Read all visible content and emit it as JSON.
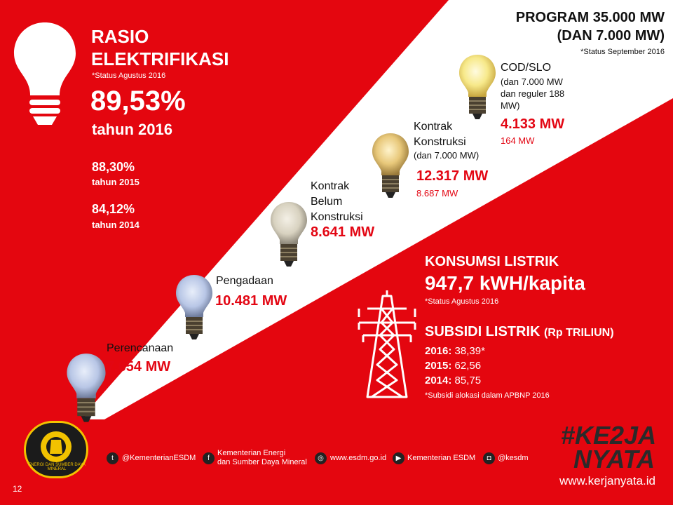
{
  "colors": {
    "brand_red": "#e4060f",
    "text_dark": "#111111",
    "value_red": "#e30613"
  },
  "program": {
    "title_line1": "PROGRAM 35.000 MW",
    "title_line2": "(DAN 7.000 MW)",
    "status_note": "*Status September 2016"
  },
  "rasio": {
    "title_line1": "RASIO",
    "title_line2": "ELEKTRIFIKASI",
    "status_note": "*Status Agustus 2016",
    "value_2016": "89,53%",
    "label_2016": "tahun 2016",
    "value_2015": "88,30%",
    "label_2015": "tahun 2015",
    "value_2014": "84,12%",
    "label_2014": "tahun 2014"
  },
  "stages": {
    "cod": {
      "label_line1": "COD/SLO",
      "sub_line1": "(dan 7.000 MW",
      "sub_line2": "dan reguler 188",
      "sub_line3": "MW)",
      "value": "4.133 MW",
      "sub_value": "164 MW"
    },
    "kontrak": {
      "label_line1": "Kontrak",
      "label_line2": "Konstruksi",
      "sub_line1": "(dan 7.000 MW)",
      "value": "12.317 MW",
      "sub_value": "8.687 MW"
    },
    "belum": {
      "label_line1": "Kontrak",
      "label_line2": "Belum",
      "label_line3": "Konstruksi",
      "value": "8.641 MW"
    },
    "pengadaan": {
      "label": "Pengadaan",
      "value": "10.481 MW"
    },
    "perencanaan": {
      "label": "Perencanaan",
      "value": "7.654 MW"
    }
  },
  "konsumsi": {
    "title": "KONSUMSI LISTRIK",
    "value": "947,7 kWH/kapita",
    "status_note": "*Status Agustus 2016"
  },
  "subsidi": {
    "title": "SUBSIDI LISTRIK",
    "unit": "(Rp TRILIUN)",
    "rows": [
      {
        "year": "2016:",
        "value": "38,39*"
      },
      {
        "year": "2015:",
        "value": "62,56"
      },
      {
        "year": "2014:",
        "value": "85,75"
      }
    ],
    "note": "*Subsidi alokasi dalam APBNP 2016"
  },
  "footer": {
    "twitter": "@KementerianESDM",
    "facebook_line1": "Kementerian Energi",
    "facebook_line2": "dan Sumber Daya Mineral",
    "website": "www.esdm.go.id",
    "youtube": "Kementerian ESDM",
    "instagram": "@kesdm",
    "page_number": "12",
    "campaign_line1": "#KE2JA",
    "campaign_line2": "NYATA",
    "campaign_url": "www.kerjanyata.id",
    "logo_text": "ENERGI DAN SUMBER DAYA MINERAL"
  },
  "icons": [
    "lightbulb-icon",
    "tower-icon",
    "twitter-icon",
    "facebook-icon",
    "globe-icon",
    "youtube-icon",
    "instagram-icon",
    "esdm-logo"
  ]
}
